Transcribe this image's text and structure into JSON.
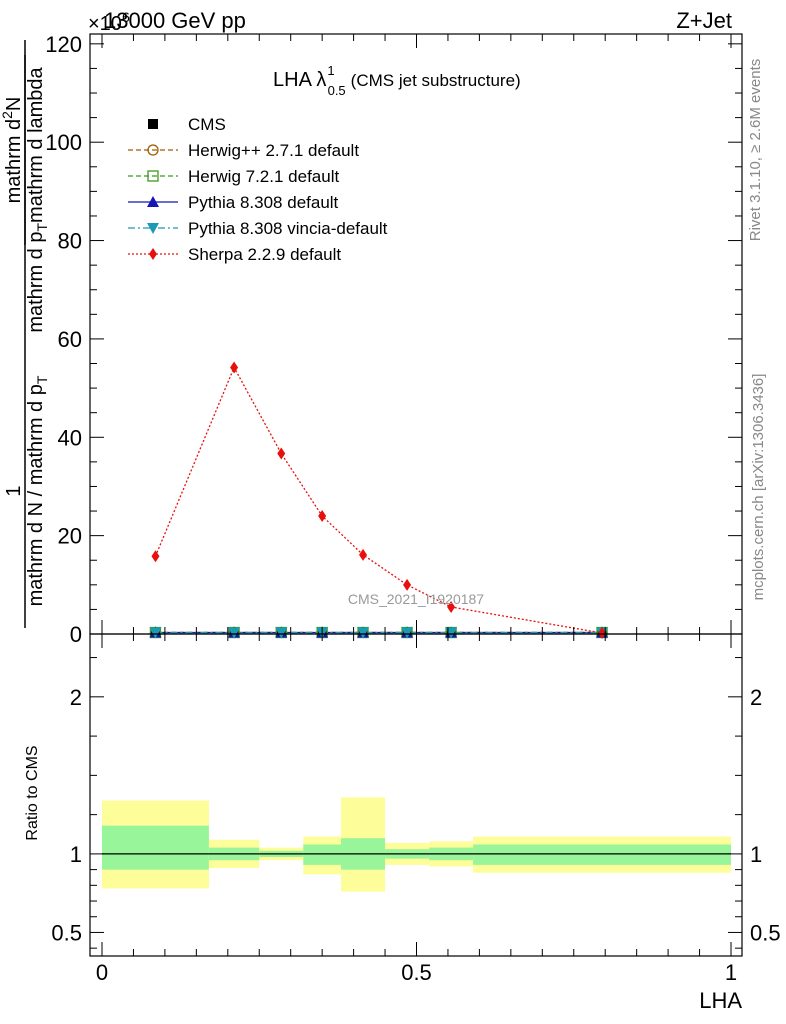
{
  "header": {
    "left": "13000 GeV pp",
    "right": "Z+Jet",
    "exponent": "×10",
    "exponent_power": "6"
  },
  "side_labels": {
    "rivet": "Rivet 3.1.10, ≥ 2.6M events",
    "mcplots": "mcplots.cern.ch [arXiv:1306.3436]"
  },
  "chart_data": [
    {
      "type": "line",
      "title": "LHA λ",
      "title_sup": "1",
      "title_sub": "0.5",
      "title_suffix": "(CMS jet substructure)",
      "watermark": "CMS_2021_I1920187",
      "ylabel": "1 / mathrm d N / mathrm d p_T mathrm d N / mathrm d p_T mathrm d lambda",
      "ylabel_parts": {
        "num_top": "1",
        "den_top": "mathrm d N / mathrm d p",
        "den_top_sub": "T",
        "num_main": "mathrm d",
        "num_main_sup": "2",
        "num_main_rest": "N",
        "den_main": "mathrm d p",
        "den_main_sub": "T",
        "den_main_rest": "mathrm d lambda"
      },
      "xlim": [
        0,
        1
      ],
      "ylim": [
        0,
        122
      ],
      "yticks": [
        0,
        20,
        40,
        60,
        80,
        100,
        120
      ],
      "ytick_labels": [
        "0",
        "20",
        "40",
        "60",
        "80",
        "100",
        "120"
      ],
      "legend_position": "top-left",
      "series": [
        {
          "name": "CMS",
          "color": "#000000",
          "marker": "square-filled",
          "line": "none",
          "x": [
            0.085,
            0.21,
            0.285,
            0.35,
            0.415,
            0.485,
            0.555,
            0.795
          ],
          "y": [
            0.3,
            0.3,
            0.3,
            0.3,
            0.3,
            0.3,
            0.3,
            0.3
          ]
        },
        {
          "name": "Herwig++ 2.7.1 default",
          "color": "#a05a00",
          "marker": "circle-open",
          "line": "dashed",
          "x": [
            0.085,
            0.21,
            0.285,
            0.35,
            0.415,
            0.485,
            0.555,
            0.795
          ],
          "y": [
            0.3,
            0.3,
            0.3,
            0.3,
            0.3,
            0.3,
            0.3,
            0.3
          ]
        },
        {
          "name": "Herwig 7.2.1 default",
          "color": "#3b9b1b",
          "marker": "square-open",
          "line": "dashed",
          "x": [
            0.085,
            0.21,
            0.285,
            0.35,
            0.415,
            0.485,
            0.555,
            0.795
          ],
          "y": [
            0.3,
            0.3,
            0.3,
            0.3,
            0.3,
            0.3,
            0.3,
            0.3
          ]
        },
        {
          "name": "Pythia 8.308 default",
          "color": "#1515b5",
          "marker": "triangle-up-filled",
          "line": "solid",
          "x": [
            0.085,
            0.21,
            0.285,
            0.35,
            0.415,
            0.485,
            0.555,
            0.795
          ],
          "y": [
            0.3,
            0.3,
            0.3,
            0.3,
            0.3,
            0.3,
            0.3,
            0.3
          ]
        },
        {
          "name": "Pythia 8.308 vincia-default",
          "color": "#1a9ab5",
          "marker": "triangle-down-filled",
          "line": "dashdot",
          "x": [
            0.085,
            0.21,
            0.285,
            0.35,
            0.415,
            0.485,
            0.555,
            0.795
          ],
          "y": [
            0.3,
            0.3,
            0.3,
            0.3,
            0.3,
            0.3,
            0.3,
            0.3
          ]
        },
        {
          "name": "Sherpa 2.2.9 default",
          "color": "#e8100f",
          "marker": "diamond-filled",
          "line": "dotted",
          "x": [
            0.085,
            0.21,
            0.285,
            0.35,
            0.415,
            0.485,
            0.555,
            0.795
          ],
          "y": [
            15.8,
            54.2,
            36.7,
            24.0,
            16.1,
            10.0,
            5.5,
            0.2
          ]
        }
      ]
    },
    {
      "type": "area",
      "ylabel": "Ratio to CMS",
      "xlabel": "LHA",
      "xlim": [
        0,
        1
      ],
      "ylim": [
        0.35,
        2.4
      ],
      "xticks": [
        0,
        0.5,
        1
      ],
      "xtick_labels": [
        "0",
        "0.5",
        "1"
      ],
      "yticks": [
        0.5,
        1,
        2
      ],
      "ytick_labels": [
        "0.5",
        "1",
        "2"
      ],
      "reference_line": 1,
      "bins": [
        {
          "x0": 0.0,
          "x1": 0.17,
          "green": [
            0.9,
            1.18
          ],
          "yellow": [
            0.78,
            1.34
          ]
        },
        {
          "x0": 0.17,
          "x1": 0.25,
          "green": [
            0.96,
            1.04
          ],
          "yellow": [
            0.91,
            1.09
          ]
        },
        {
          "x0": 0.25,
          "x1": 0.32,
          "green": [
            0.98,
            1.02
          ],
          "yellow": [
            0.96,
            1.04
          ]
        },
        {
          "x0": 0.32,
          "x1": 0.38,
          "green": [
            0.93,
            1.06
          ],
          "yellow": [
            0.87,
            1.11
          ]
        },
        {
          "x0": 0.38,
          "x1": 0.45,
          "green": [
            0.9,
            1.1
          ],
          "yellow": [
            0.76,
            1.36
          ]
        },
        {
          "x0": 0.45,
          "x1": 0.52,
          "green": [
            0.97,
            1.03
          ],
          "yellow": [
            0.93,
            1.07
          ]
        },
        {
          "x0": 0.52,
          "x1": 0.59,
          "green": [
            0.96,
            1.04
          ],
          "yellow": [
            0.92,
            1.08
          ]
        },
        {
          "x0": 0.59,
          "x1": 1.0,
          "green": [
            0.93,
            1.06
          ],
          "yellow": [
            0.88,
            1.11
          ]
        }
      ],
      "colors": {
        "green": "#99f599",
        "yellow": "#fdfd99"
      }
    }
  ]
}
